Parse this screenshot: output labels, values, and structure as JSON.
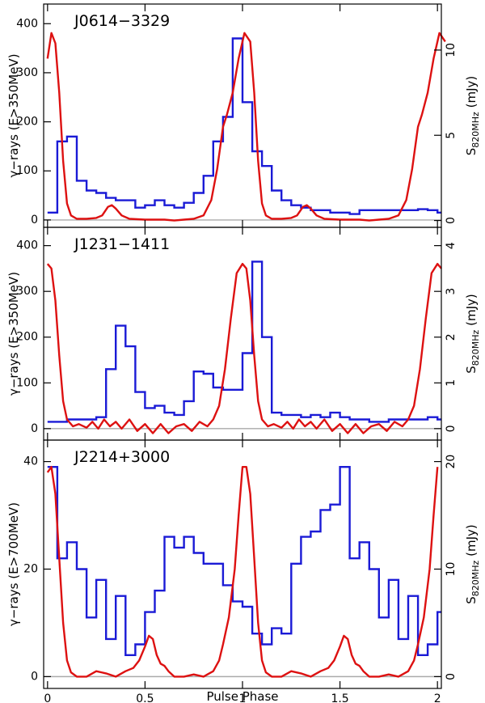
{
  "chart_data": [
    {
      "type": "line",
      "label": "J0614−3329",
      "ylabel_left": "γ−rays  (E>350MeV)",
      "ylabel_right_main": "S",
      "ylabel_right_sub": "820MHz",
      "ylabel_right_unit": "  (mJy)",
      "ylim_left": [
        -15,
        440
      ],
      "ylim_right": [
        -0.4,
        12.7
      ],
      "yticks_left": [
        0,
        100,
        200,
        300,
        400
      ],
      "yticks_right": [
        0,
        5,
        10
      ],
      "xlim": [
        -0.02,
        2.02
      ],
      "colors": {
        "gamma": "#1a1ad6",
        "radio": "#dd1111",
        "baseline": "#aaaaaa"
      },
      "series": [
        {
          "kind": "gamma-step",
          "values": [
            15,
            160,
            170,
            80,
            60,
            55,
            45,
            40,
            40,
            25,
            30,
            40,
            30,
            25,
            35,
            55,
            90,
            160,
            210,
            370,
            240,
            140,
            110,
            60,
            40,
            30,
            25,
            20,
            20,
            15,
            15,
            12,
            20,
            20,
            20,
            20,
            20,
            20,
            22,
            20,
            15
          ]
        },
        {
          "kind": "radio-curve",
          "points": [
            [
              0.0,
              9.5
            ],
            [
              0.02,
              11.0
            ],
            [
              0.04,
              10.4
            ],
            [
              0.06,
              7.5
            ],
            [
              0.08,
              3.5
            ],
            [
              0.1,
              1.0
            ],
            [
              0.12,
              0.3
            ],
            [
              0.15,
              0.1
            ],
            [
              0.2,
              0.1
            ],
            [
              0.25,
              0.15
            ],
            [
              0.28,
              0.3
            ],
            [
              0.31,
              0.8
            ],
            [
              0.33,
              0.9
            ],
            [
              0.35,
              0.7
            ],
            [
              0.38,
              0.3
            ],
            [
              0.42,
              0.1
            ],
            [
              0.5,
              0.05
            ],
            [
              0.6,
              0.05
            ],
            [
              0.65,
              0.0
            ],
            [
              0.7,
              0.05
            ],
            [
              0.75,
              0.1
            ],
            [
              0.8,
              0.3
            ],
            [
              0.84,
              1.2
            ],
            [
              0.87,
              3.0
            ],
            [
              0.9,
              5.5
            ],
            [
              0.92,
              6.2
            ],
            [
              0.95,
              7.5
            ],
            [
              0.98,
              9.5
            ],
            [
              1.01,
              11.0
            ],
            [
              1.04,
              10.5
            ]
          ]
        }
      ]
    },
    {
      "type": "line",
      "label": "J1231−1411",
      "ylabel_left": "γ−rays  (E>350MeV)",
      "ylabel_right_main": "S",
      "ylabel_right_sub": "820MHz",
      "ylabel_right_unit": "  (mJy)",
      "ylim_left": [
        -25,
        440
      ],
      "ylim_right": [
        -0.25,
        4.4
      ],
      "yticks_left": [
        0,
        100,
        200,
        300,
        400
      ],
      "yticks_right": [
        0,
        1,
        2,
        3,
        4
      ],
      "xlim": [
        -0.02,
        2.02
      ],
      "colors": {
        "gamma": "#1a1ad6",
        "radio": "#dd1111",
        "baseline": "#aaaaaa"
      },
      "series": [
        {
          "kind": "gamma-step",
          "values": [
            15,
            15,
            20,
            20,
            20,
            25,
            130,
            225,
            180,
            80,
            45,
            50,
            35,
            30,
            60,
            125,
            120,
            90,
            85,
            85,
            165,
            365,
            200,
            35,
            30,
            30,
            25,
            30,
            25,
            35,
            25,
            20,
            20,
            15,
            15,
            20,
            20,
            20,
            20,
            25,
            20
          ]
        },
        {
          "kind": "radio-curve",
          "points": [
            [
              0.0,
              3.6
            ],
            [
              0.02,
              3.5
            ],
            [
              0.04,
              2.8
            ],
            [
              0.06,
              1.6
            ],
            [
              0.08,
              0.6
            ],
            [
              0.1,
              0.2
            ],
            [
              0.13,
              0.05
            ],
            [
              0.16,
              0.1
            ],
            [
              0.2,
              0.02
            ],
            [
              0.23,
              0.15
            ],
            [
              0.26,
              0.0
            ],
            [
              0.29,
              0.2
            ],
            [
              0.32,
              0.05
            ],
            [
              0.35,
              0.15
            ],
            [
              0.38,
              0.0
            ],
            [
              0.42,
              0.2
            ],
            [
              0.46,
              -0.05
            ],
            [
              0.5,
              0.1
            ],
            [
              0.54,
              -0.1
            ],
            [
              0.58,
              0.1
            ],
            [
              0.62,
              -0.1
            ],
            [
              0.66,
              0.05
            ],
            [
              0.7,
              0.1
            ],
            [
              0.74,
              -0.05
            ],
            [
              0.78,
              0.15
            ],
            [
              0.82,
              0.05
            ],
            [
              0.85,
              0.2
            ],
            [
              0.88,
              0.5
            ],
            [
              0.91,
              1.3
            ],
            [
              0.94,
              2.4
            ],
            [
              0.97,
              3.4
            ],
            [
              1.0,
              3.6
            ],
            [
              1.02,
              3.5
            ]
          ]
        }
      ]
    },
    {
      "type": "line",
      "label": "J2214+3000",
      "ylabel_left": "γ−rays  (E>700MeV)",
      "ylabel_right_main": "S",
      "ylabel_right_sub": "820MHz",
      "ylabel_right_unit": "  (mJy)",
      "ylim_left": [
        -2.2,
        44
      ],
      "ylim_right": [
        -1.1,
        22
      ],
      "yticks_left": [
        0,
        20,
        40
      ],
      "yticks_right": [
        0,
        10,
        20
      ],
      "xlim": [
        -0.02,
        2.02
      ],
      "colors": {
        "gamma": "#1a1ad6",
        "radio": "#dd1111",
        "baseline": "#aaaaaa"
      },
      "xticks": [
        0,
        0.5,
        1,
        1.5,
        2
      ],
      "xtick_labels": [
        "0",
        "0.5",
        "1",
        "1.5",
        "2"
      ],
      "xlabel": "Pulse Phase",
      "series": [
        {
          "kind": "gamma-step",
          "values": [
            39,
            22,
            25,
            20,
            11,
            18,
            7,
            15,
            4,
            6,
            12,
            16,
            26,
            24,
            26,
            23,
            21,
            21,
            17,
            14,
            13,
            8,
            6,
            9,
            8,
            21,
            26,
            27,
            31,
            32,
            39,
            22,
            25,
            20,
            11,
            18,
            7,
            15,
            4,
            6,
            12
          ]
        },
        {
          "kind": "radio-curve",
          "points": [
            [
              0.0,
              19.0
            ],
            [
              0.02,
              19.5
            ],
            [
              0.04,
              17.0
            ],
            [
              0.06,
              11.0
            ],
            [
              0.08,
              5.0
            ],
            [
              0.1,
              1.5
            ],
            [
              0.12,
              0.4
            ],
            [
              0.15,
              0.0
            ],
            [
              0.2,
              0.0
            ],
            [
              0.25,
              0.5
            ],
            [
              0.3,
              0.3
            ],
            [
              0.35,
              0.0
            ],
            [
              0.4,
              0.5
            ],
            [
              0.44,
              0.8
            ],
            [
              0.47,
              1.5
            ],
            [
              0.5,
              2.8
            ],
            [
              0.52,
              3.8
            ],
            [
              0.54,
              3.5
            ],
            [
              0.56,
              2.0
            ],
            [
              0.58,
              1.2
            ],
            [
              0.6,
              1.0
            ],
            [
              0.62,
              0.5
            ],
            [
              0.65,
              0.0
            ],
            [
              0.7,
              0.0
            ],
            [
              0.75,
              0.2
            ],
            [
              0.8,
              0.0
            ],
            [
              0.85,
              0.5
            ],
            [
              0.88,
              1.5
            ],
            [
              0.9,
              3.0
            ],
            [
              0.93,
              5.5
            ],
            [
              0.96,
              10.0
            ],
            [
              0.98,
              15.0
            ],
            [
              1.0,
              19.5
            ]
          ]
        }
      ]
    }
  ]
}
